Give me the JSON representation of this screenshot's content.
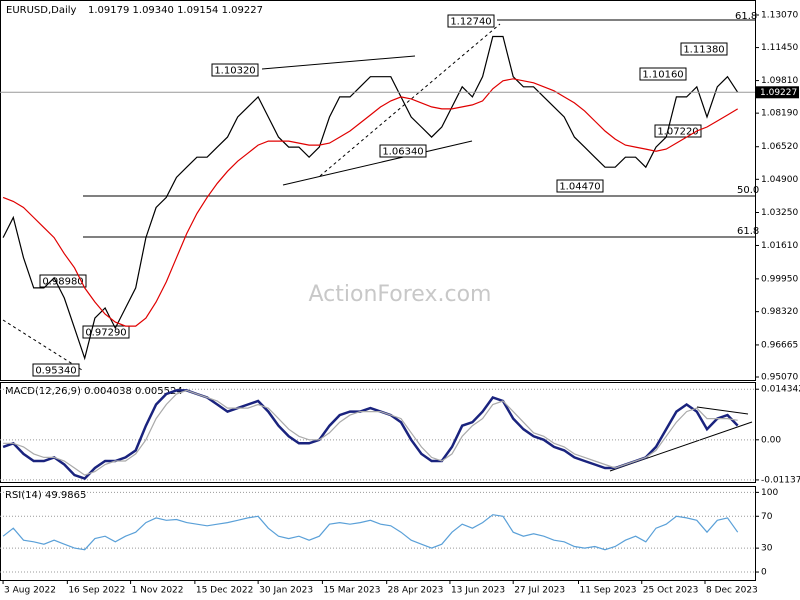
{
  "chart_data": [
    {
      "type": "line",
      "title": "EURUSD,Daily",
      "subtitle": "1.09179 1.09340 1.09154 1.09227",
      "watermark": "ActionForex.com",
      "xlim": [
        -0.3,
        73.7
      ],
      "ylim": [
        0.94921,
        1.13816
      ],
      "yticks": [
        {
          "value": 1.1307,
          "label": "1.13070"
        },
        {
          "value": 1.1145,
          "label": "1.11450"
        },
        {
          "value": 1.0981,
          "label": "1.09810"
        },
        {
          "value": 1.0819,
          "label": "1.08190"
        },
        {
          "value": 1.0652,
          "label": "1.06520"
        },
        {
          "value": 1.049,
          "label": "1.04900"
        },
        {
          "value": 1.0325,
          "label": "1.03250"
        },
        {
          "value": 1.0161,
          "label": "1.01610"
        },
        {
          "value": 0.9995,
          "label": "0.99950"
        },
        {
          "value": 0.9832,
          "label": "0.98320"
        },
        {
          "value": 0.96665,
          "label": "0.96665"
        },
        {
          "value": 0.9507,
          "label": "0.95070"
        }
      ],
      "last_price": 1.09227,
      "grid": false,
      "annotations": [
        "1.12740",
        "1.10320",
        "1.06340",
        "1.04470",
        "1.10160",
        "1.11380",
        "1.07220",
        "0.98980",
        "0.97290",
        "0.95340"
      ],
      "fib_labels": [
        "61.8",
        "50.0",
        "61.8"
      ],
      "series": [
        {
          "color": "#000000",
          "values": [
            1.02,
            1.03,
            1.01,
            0.995,
            0.995,
            1.0,
            0.99,
            0.975,
            0.96,
            0.98,
            0.985,
            0.975,
            0.985,
            0.995,
            1.02,
            1.035,
            1.04,
            1.05,
            1.055,
            1.06,
            1.06,
            1.065,
            1.07,
            1.08,
            1.085,
            1.09,
            1.08,
            1.07,
            1.065,
            1.065,
            1.06,
            1.065,
            1.08,
            1.09,
            1.09,
            1.095,
            1.1,
            1.1,
            1.1,
            1.09,
            1.08,
            1.075,
            1.07,
            1.075,
            1.085,
            1.095,
            1.09,
            1.1,
            1.12,
            1.12,
            1.1,
            1.095,
            1.095,
            1.09,
            1.085,
            1.08,
            1.07,
            1.065,
            1.06,
            1.055,
            1.055,
            1.06,
            1.06,
            1.055,
            1.065,
            1.07,
            1.09,
            1.09,
            1.095,
            1.08,
            1.095,
            1.1,
            1.09227
          ]
        },
        {
          "color": "#e00000",
          "values": [
            1.04,
            1.038,
            1.035,
            1.03,
            1.025,
            1.02,
            1.012,
            1.005,
            0.995,
            0.988,
            0.982,
            0.978,
            0.976,
            0.976,
            0.98,
            0.988,
            0.998,
            1.01,
            1.022,
            1.032,
            1.04,
            1.047,
            1.053,
            1.058,
            1.062,
            1.066,
            1.068,
            1.068,
            1.068,
            1.067,
            1.066,
            1.066,
            1.067,
            1.07,
            1.073,
            1.077,
            1.081,
            1.085,
            1.088,
            1.09,
            1.089,
            1.087,
            1.085,
            1.084,
            1.084,
            1.085,
            1.086,
            1.088,
            1.094,
            1.098,
            1.099,
            1.098,
            1.097,
            1.095,
            1.093,
            1.09,
            1.087,
            1.083,
            1.078,
            1.073,
            1.069,
            1.066,
            1.065,
            1.064,
            1.063,
            1.064,
            1.067,
            1.07,
            1.073,
            1.075,
            1.078,
            1.081,
            1.084
          ]
        }
      ]
    },
    {
      "type": "line",
      "title": "MACD(12,26,9) 0.004038 0.005524",
      "xlim": [
        -0.3,
        73.7
      ],
      "ylim": [
        -0.01196,
        0.01639
      ],
      "yticks": [
        0.014342,
        {
          "value": 0,
          "label": "0.00"
        },
        -0.011371
      ],
      "grid": true,
      "series": [
        {
          "color": "#1a237e",
          "values": [
            -0.002,
            -0.001,
            -0.004,
            -0.006,
            -0.006,
            -0.005,
            -0.007,
            -0.01,
            -0.011,
            -0.008,
            -0.006,
            -0.006,
            -0.005,
            -0.003,
            0.004,
            0.01,
            0.013,
            0.014,
            0.014,
            0.013,
            0.012,
            0.01,
            0.008,
            0.009,
            0.01,
            0.011,
            0.008,
            0.004,
            0.001,
            -0.001,
            -0.001,
            0.0,
            0.004,
            0.007,
            0.008,
            0.008,
            0.009,
            0.008,
            0.007,
            0.005,
            0.0,
            -0.004,
            -0.006,
            -0.006,
            -0.002,
            0.004,
            0.005,
            0.008,
            0.012,
            0.011,
            0.006,
            0.003,
            0.001,
            0.0,
            -0.002,
            -0.003,
            -0.005,
            -0.006,
            -0.007,
            -0.008,
            -0.008,
            -0.007,
            -0.006,
            -0.005,
            -0.002,
            0.003,
            0.008,
            0.01,
            0.008,
            0.003,
            0.006,
            0.007,
            0.004038
          ]
        },
        {
          "color": "#aaaaaa",
          "values": [
            -0.001,
            -0.001,
            -0.002,
            -0.004,
            -0.005,
            -0.005,
            -0.006,
            -0.008,
            -0.01,
            -0.009,
            -0.007,
            -0.006,
            -0.006,
            -0.004,
            0.0,
            0.006,
            0.01,
            0.013,
            0.014,
            0.013,
            0.012,
            0.011,
            0.009,
            0.009,
            0.009,
            0.01,
            0.009,
            0.006,
            0.003,
            0.001,
            0.0,
            0.0,
            0.002,
            0.005,
            0.007,
            0.008,
            0.008,
            0.008,
            0.007,
            0.006,
            0.002,
            -0.002,
            -0.005,
            -0.006,
            -0.004,
            0.001,
            0.004,
            0.006,
            0.01,
            0.011,
            0.008,
            0.005,
            0.002,
            0.001,
            -0.001,
            -0.002,
            -0.004,
            -0.005,
            -0.006,
            -0.007,
            -0.008,
            -0.007,
            -0.006,
            -0.005,
            -0.003,
            0.001,
            0.005,
            0.008,
            0.009,
            0.006,
            0.006,
            0.006,
            0.005524
          ]
        }
      ]
    },
    {
      "type": "line",
      "title": "RSI(14) 49.9865",
      "xlim": [
        -0.3,
        73.7
      ],
      "ylim": [
        -10,
        108
      ],
      "yticks": [
        100,
        70,
        30,
        0
      ],
      "grid": true,
      "xticks": [
        {
          "value": 0,
          "label": "3 Aug 2022"
        },
        {
          "value": 6.3,
          "label": "16 Sep 2022"
        },
        {
          "value": 12.5,
          "label": "1 Nov 2022"
        },
        {
          "value": 18.8,
          "label": "15 Dec 2022"
        },
        {
          "value": 25,
          "label": "30 Jan 2023"
        },
        {
          "value": 31.3,
          "label": "15 Mar 2023"
        },
        {
          "value": 37.6,
          "label": "28 Apr 2023"
        },
        {
          "value": 43.8,
          "label": "13 Jun 2023"
        },
        {
          "value": 50,
          "label": "27 Jul 2023"
        },
        {
          "value": 56.4,
          "label": "11 Sep 2023"
        },
        {
          "value": 62.6,
          "label": "25 Oct 2023"
        },
        {
          "value": 68.8,
          "label": "8 Dec 2023"
        }
      ],
      "series": [
        {
          "color": "#5aa0d8",
          "values": [
            45,
            55,
            40,
            38,
            35,
            40,
            35,
            30,
            28,
            42,
            45,
            38,
            45,
            50,
            62,
            68,
            65,
            66,
            62,
            60,
            58,
            60,
            62,
            65,
            68,
            70,
            55,
            45,
            42,
            45,
            40,
            45,
            60,
            62,
            60,
            62,
            65,
            60,
            58,
            50,
            40,
            35,
            30,
            35,
            50,
            60,
            55,
            62,
            72,
            70,
            50,
            45,
            48,
            45,
            40,
            38,
            32,
            30,
            32,
            28,
            32,
            40,
            45,
            38,
            55,
            60,
            70,
            68,
            65,
            50,
            65,
            68,
            49.9865
          ]
        }
      ]
    }
  ]
}
